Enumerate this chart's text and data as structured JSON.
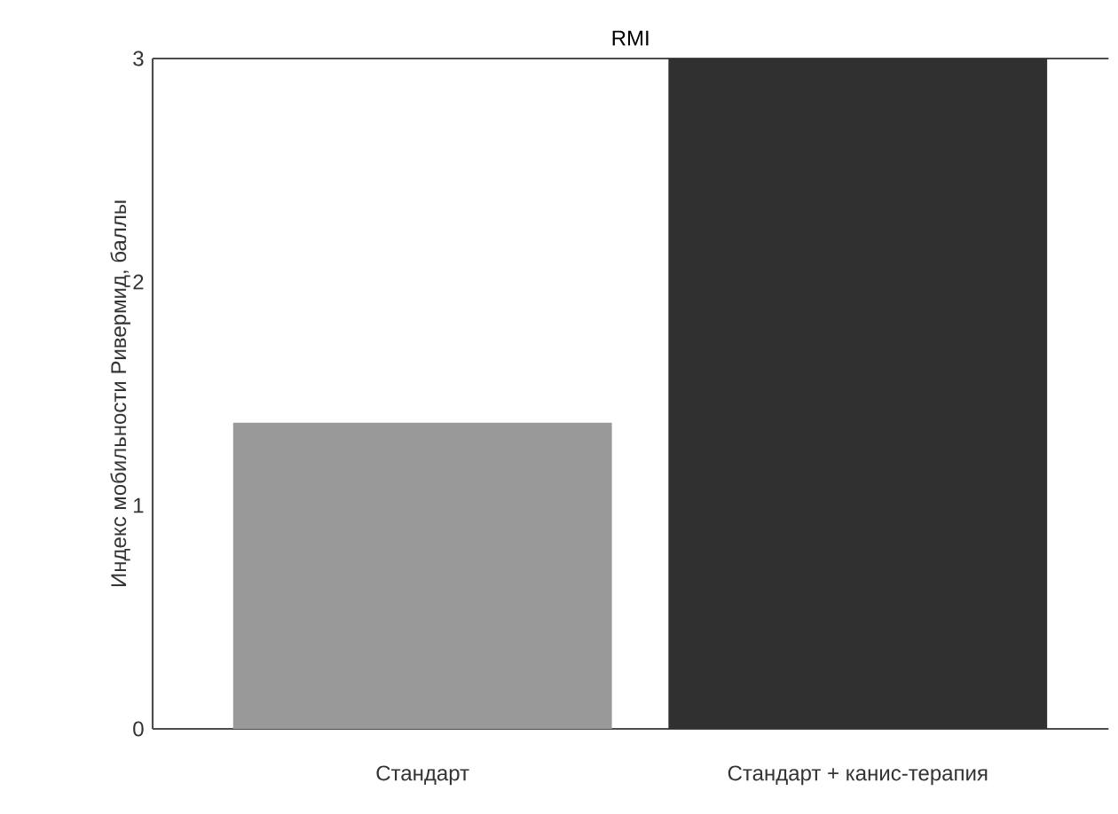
{
  "chart_data": {
    "type": "bar",
    "title": "RMI",
    "ylabel": "Индекс мобильности Ривермид, баллы",
    "categories": [
      "Стандарт",
      "Стандарт + канис-терапия"
    ],
    "values": [
      1.37,
      3
    ],
    "colors": [
      "#999999",
      "#303030"
    ],
    "ylim": [
      0,
      3
    ],
    "yticks": [
      0,
      1,
      2,
      3
    ],
    "grid": false
  }
}
